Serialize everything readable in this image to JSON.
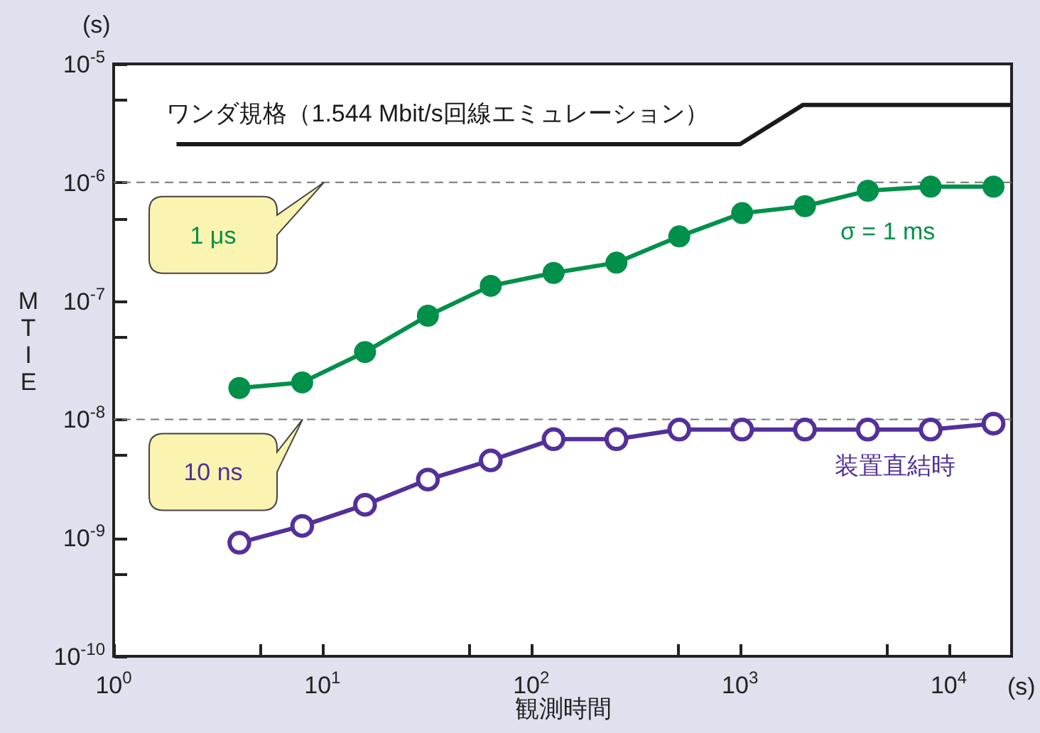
{
  "chart_data": {
    "type": "line",
    "xlabel": "観測時間",
    "ylabel": "MTIE",
    "log": "xy",
    "marker": "circle",
    "xlim": [
      1,
      20000
    ],
    "ylim": [
      1e-10,
      1e-05
    ],
    "xticks": [
      {
        "value": 1,
        "label": "10$^{0}$"
      },
      {
        "value": 5,
        "label": null
      },
      {
        "value": 10,
        "label": "10$^{1}$"
      },
      {
        "value": 50,
        "label": null
      },
      {
        "value": 100,
        "label": "10$^{2}$"
      },
      {
        "value": 500,
        "label": null
      },
      {
        "value": 1000,
        "label": "10$^{3}$"
      },
      {
        "value": 5000,
        "label": null
      },
      {
        "value": 10000,
        "label": "10$^{4}$"
      }
    ],
    "yticks": [
      {
        "value": 1e-10,
        "label": "10$^{-10}$"
      },
      {
        "value": 5e-10,
        "label": null
      },
      {
        "value": 1e-09,
        "label": "10$^{-9}$"
      },
      {
        "value": 5e-09,
        "label": null
      },
      {
        "value": 1e-08,
        "label": "10$^{-8}$"
      },
      {
        "value": 5e-08,
        "label": null
      },
      {
        "value": 1e-07,
        "label": "10$^{-7}$"
      },
      {
        "value": 5e-07,
        "label": null
      },
      {
        "value": 1e-06,
        "label": "10$^{-6}$"
      },
      {
        "value": 5e-06,
        "label": null
      },
      {
        "value": 1e-05,
        "label": "10$^{-5}$"
      }
    ],
    "series": [
      {
        "name": "ワンダ規格（1.544 Mbit/s回線エミュレーション）",
        "color": "#1a1a1a",
        "marker": "none",
        "x": [
          2,
          1000,
          2000,
          20000
        ],
        "values": [
          2.1e-06,
          2.1e-06,
          4.5e-06,
          4.5e-06
        ]
      },
      {
        "name": "σ = 1 ms",
        "color": "#00904a",
        "x": [
          4,
          8,
          16,
          32,
          64,
          128,
          256,
          512,
          1024,
          2048,
          4096,
          8192,
          16384
        ],
        "values": [
          1.84e-08,
          2.05e-08,
          3.7e-08,
          7.5e-08,
          1.34e-07,
          1.72e-07,
          2.1e-07,
          3.5e-07,
          5.5e-07,
          6.3e-07,
          8.5e-07,
          9.2e-07,
          9.2e-07
        ]
      },
      {
        "name": "装置直結時",
        "color": "#53309a",
        "x": [
          4,
          8,
          16,
          32,
          64,
          128,
          256,
          512,
          1024,
          2048,
          4096,
          8192,
          16384
        ],
        "values": [
          9.1e-10,
          1.26e-09,
          1.9e-09,
          3.1e-09,
          4.5e-09,
          6.8e-09,
          6.8e-09,
          8.2e-09,
          8.2e-09,
          8.2e-09,
          8.2e-09,
          8.2e-09,
          9.2e-09
        ]
      }
    ],
    "ref_lines": [
      {
        "axis": "y",
        "value": 1e-06,
        "label": "1 μs",
        "color": "#777777",
        "line_style": "dashed"
      },
      {
        "axis": "y",
        "value": 1e-08,
        "label": "10 ns",
        "color": "#777777",
        "line_style": "dashed"
      }
    ],
    "annotations": [
      "(s)",
      "(s)"
    ]
  }
}
